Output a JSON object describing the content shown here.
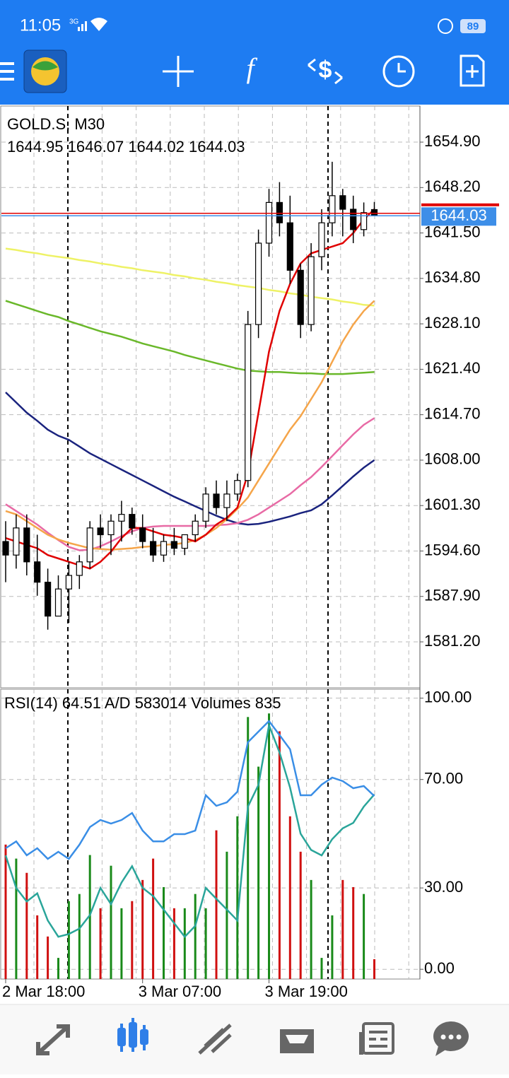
{
  "status_bar": {
    "time": "11:05",
    "network": "3G",
    "battery": "89"
  },
  "toolbar": {
    "indicators_icon": "f",
    "trade_icon": "$"
  },
  "chart_data": [
    {
      "type": "candlestick",
      "title": "GOLD.S, M30",
      "candles": {
        "open": [
          1596,
          1594,
          1598,
          1593,
          1590,
          1585,
          1589,
          1591,
          1593,
          1598,
          1597,
          1599,
          1600,
          1598,
          1596,
          1594,
          1596,
          1595,
          1597,
          1599,
          1603,
          1601,
          1603,
          1605,
          1628,
          1640,
          1646,
          1643,
          1636,
          1628,
          1638,
          1643,
          1647,
          1645,
          1642,
          1644.95
        ],
        "high": [
          1599,
          1600,
          1600,
          1597,
          1592,
          1591,
          1593,
          1594,
          1599,
          1600,
          1600,
          1602,
          1601,
          1600,
          1598,
          1597,
          1598,
          1597,
          1600,
          1604,
          1605,
          1605,
          1606,
          1630,
          1642,
          1648,
          1649,
          1647,
          1637,
          1640,
          1645,
          1652,
          1648,
          1647,
          1646,
          1646.07
        ],
        "low": [
          1590,
          1592,
          1591,
          1588,
          1583,
          1585,
          1584,
          1589,
          1592,
          1595,
          1594,
          1596,
          1597,
          1595,
          1593,
          1593,
          1594,
          1594,
          1596,
          1598,
          1600,
          1599,
          1602,
          1604,
          1626,
          1638,
          1641,
          1634,
          1626,
          1627,
          1636,
          1641,
          1641,
          1640,
          1641,
          1644.02
        ],
        "close": [
          1594,
          1598,
          1593,
          1590,
          1585,
          1589,
          1591,
          1593,
          1598,
          1597,
          1599,
          1600,
          1598,
          1596,
          1594,
          1596,
          1595,
          1597,
          1599,
          1603,
          1601,
          1603,
          1605,
          1628,
          1640,
          1646,
          1643,
          1636,
          1628,
          1638,
          1643,
          1647,
          1645,
          1642,
          1644.5,
          1644.03
        ]
      },
      "up_color": "#ffffff",
      "down_color": "#000000",
      "ask": 1644.4,
      "ask_color": "#e00000",
      "bid_color": "#3d8ee8",
      "overlays": [
        {
          "color": "#eef266",
          "values": [
            1639.2,
            1639.0,
            1638.7,
            1638.5,
            1638.2,
            1638.0,
            1637.8,
            1637.5,
            1637.3,
            1637.0,
            1636.8,
            1636.5,
            1636.3,
            1636.0,
            1635.8,
            1635.6,
            1635.3,
            1635.1,
            1634.8,
            1634.6,
            1634.3,
            1634.1,
            1633.8,
            1633.6,
            1633.4,
            1633.1,
            1632.9,
            1632.6,
            1632.4,
            1632.1,
            1631.9,
            1631.7,
            1631.4,
            1631.2,
            1630.9,
            1630.8
          ]
        },
        {
          "color": "#6ab82a",
          "values": [
            1631.5,
            1631.0,
            1630.5,
            1630.0,
            1629.5,
            1629.1,
            1628.5,
            1628.0,
            1627.5,
            1627.0,
            1626.6,
            1626.2,
            1625.7,
            1625.2,
            1624.8,
            1624.4,
            1624.0,
            1623.5,
            1623.1,
            1622.7,
            1622.3,
            1621.9,
            1621.5,
            1621.2,
            1621.1,
            1621.0,
            1621.0,
            1620.9,
            1620.8,
            1620.8,
            1620.7,
            1620.7,
            1620.7,
            1620.8,
            1620.9,
            1621.0
          ]
        },
        {
          "color": "#1a237e",
          "values": [
            1618,
            1616.5,
            1615,
            1613.8,
            1612.5,
            1611.6,
            1611,
            1610,
            1609,
            1608.2,
            1607.4,
            1606.6,
            1605.8,
            1605,
            1604.2,
            1603.4,
            1602.6,
            1601.9,
            1601.2,
            1600.5,
            1599.8,
            1599.2,
            1598.7,
            1598.5,
            1598.6,
            1598.9,
            1599.3,
            1599.7,
            1600.2,
            1600.6,
            1601.5,
            1602.8,
            1604.2,
            1605.6,
            1606.9,
            1608
          ]
        },
        {
          "color": "#e86aa5",
          "values": [
            1601.5,
            1600.5,
            1599.5,
            1598.5,
            1597.3,
            1596.2,
            1595.2,
            1594.7,
            1594.8,
            1595.3,
            1596,
            1596.8,
            1597.5,
            1598,
            1598.2,
            1598.3,
            1598.3,
            1598.3,
            1598.3,
            1598.3,
            1598.4,
            1598.5,
            1598.7,
            1599.2,
            1600,
            1601,
            1602,
            1603,
            1604.3,
            1605.5,
            1607,
            1608.6,
            1610.2,
            1611.8,
            1613.2,
            1614.2
          ]
        },
        {
          "color": "#f5a54a",
          "values": [
            1600.5,
            1600,
            1599,
            1598,
            1597,
            1596.3,
            1595.8,
            1595.4,
            1595,
            1594.9,
            1594.8,
            1594.9,
            1595,
            1595.2,
            1595.3,
            1595.5,
            1595.6,
            1595.8,
            1596.2,
            1597,
            1598,
            1599.3,
            1600.8,
            1602.5,
            1605,
            1607.5,
            1610,
            1612.5,
            1614.5,
            1617,
            1619.5,
            1622.5,
            1625.5,
            1628,
            1630,
            1631.5
          ]
        },
        {
          "color": "#e00000",
          "values": [
            1596.5,
            1596,
            1595.5,
            1595,
            1594,
            1593.5,
            1593,
            1592.5,
            1592,
            1593,
            1594.5,
            1596.5,
            1598,
            1598,
            1597.5,
            1597,
            1596.8,
            1596.5,
            1596,
            1597,
            1598.5,
            1599.5,
            1601,
            1606,
            1615,
            1624,
            1630,
            1634,
            1637,
            1638.5,
            1639,
            1639.5,
            1640,
            1641.5,
            1643.5,
            1645
          ]
        }
      ],
      "ylim": [
        1574.53,
        1660.22
      ],
      "yticks": [
        {
          "value": 1654.9,
          "label": "1654.90"
        },
        {
          "value": 1648.2,
          "label": "1648.20"
        },
        {
          "value": 1641.5,
          "label": "1641.50"
        },
        {
          "value": 1634.8,
          "label": "1634.80"
        },
        {
          "value": 1628.1,
          "label": "1628.10"
        },
        {
          "value": 1621.4,
          "label": "1621.40"
        },
        {
          "value": 1614.7,
          "label": "1614.70"
        },
        {
          "value": 1608.0,
          "label": "1608.00"
        },
        {
          "value": 1601.3,
          "label": "1601.30"
        },
        {
          "value": 1594.6,
          "label": "1594.60"
        },
        {
          "value": 1587.9,
          "label": "1587.90"
        },
        {
          "value": 1581.2,
          "label": "1581.20"
        }
      ],
      "xticks": [
        {
          "value": 0,
          "label": "2 Mar 18:00"
        },
        {
          "value": 13,
          "label": "3 Mar 07:00"
        },
        {
          "value": 25,
          "label": "3 Mar 19:00"
        }
      ],
      "grid": true
    },
    {
      "type": "line",
      "series": [
        {
          "name": "RSI(14)",
          "color": "#2aa59a",
          "values": [
            42,
            30,
            25,
            28,
            18,
            12,
            13,
            15,
            20,
            30,
            24,
            32,
            38,
            30,
            27,
            22,
            17,
            12,
            16,
            30,
            26,
            22,
            18,
            60,
            68,
            90,
            80,
            67,
            50,
            44,
            42,
            48,
            52,
            54,
            60,
            64.51
          ]
        },
        {
          "name": "A/D",
          "color": "#3a8ee6",
          "axis": "y2",
          "values": [
            496600,
            508000,
            485000,
            496600,
            479000,
            490700,
            479000,
            502400,
            531700,
            543400,
            537600,
            543400,
            555000,
            525900,
            508000,
            508000,
            520000,
            520000,
            525900,
            584400,
            566800,
            572700,
            590300,
            672200,
            689800,
            707300,
            684000,
            660500,
            584400,
            584400,
            602000,
            613600,
            607800,
            596100,
            599600,
            583014
          ]
        }
      ],
      "volumes": {
        "name": "Volumes",
        "up_color": "#1a8a1a",
        "down_color": "#d01010",
        "values": [
          5660,
          5070,
          4470,
          2680,
          1790,
          890,
          3280,
          3580,
          5220,
          2980,
          4770,
          2980,
          3280,
          4170,
          5070,
          3870,
          2980,
          2980,
          3580,
          2980,
          6260,
          5360,
          6850,
          11030,
          8940,
          11180,
          10430,
          6850,
          5360,
          4170,
          890,
          2680,
          4170,
          3870,
          3580,
          835
        ]
      },
      "ylim": [
        -3.6,
        103.3
      ],
      "yticks": [
        {
          "value": 100,
          "label": "100.00"
        },
        {
          "value": 70,
          "label": "70.00"
        },
        {
          "value": 30,
          "label": "30.00"
        },
        {
          "value": 0,
          "label": "0.00"
        }
      ],
      "y2lim": [
        280000,
        760000
      ],
      "vlim": [
        0,
        12200
      ]
    }
  ]
}
